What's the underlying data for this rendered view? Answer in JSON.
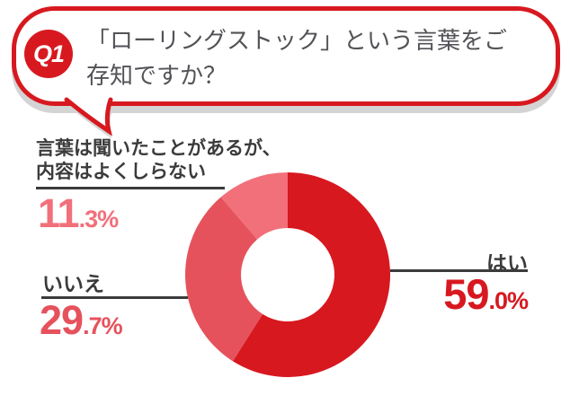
{
  "question_bubble": {
    "badge": "Q1",
    "text": "「ローリングストック」という言葉をご存知ですか？",
    "lines": [
      "「ローリングストック」という言葉をご",
      "存知ですか？"
    ],
    "border_color": "#d7191f",
    "badge_color": "#d7191f",
    "shadow_color": "#d4d4d4",
    "text_color": "#525257"
  },
  "chart_data": {
    "type": "pie",
    "subtype": "donut",
    "title": "「ローリングストック」という言葉をご存知ですか？",
    "start_angle": "12-oclock-clockwise",
    "inner_radius_ratio": 0.456,
    "value_unit": "%",
    "value_format": "one_decimal_percent",
    "leader_line_color": "#3b3b3b",
    "label_color": "#3b3b3b",
    "segments": [
      {
        "label": "はい",
        "value": 59.0,
        "color": "#d7181f"
      },
      {
        "label": "いいえ",
        "value": 29.7,
        "color": "#e6525c"
      },
      {
        "label": "言葉は聞いたことがあるが、内容はよくしらない",
        "label_lines": [
          "言葉は聞いたことがあるが、",
          "内容はよくしらない"
        ],
        "value": 11.3,
        "color": "#f1707a"
      }
    ]
  }
}
